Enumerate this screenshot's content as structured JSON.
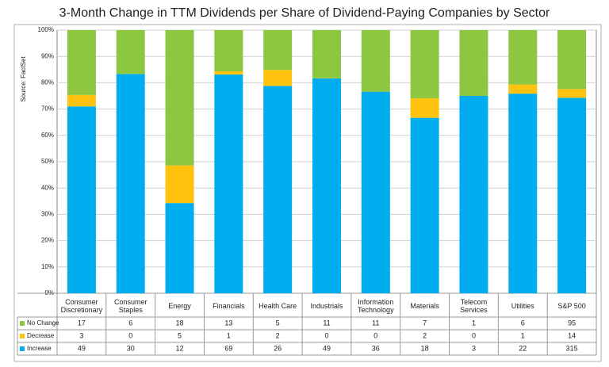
{
  "chart_data": {
    "type": "stacked-percent-bar",
    "title": "3-Month Change in TTM Dividends per Share of Dividend-Paying Companies by Sector",
    "source": "Source: FactSet",
    "categories": [
      "Consumer Discretionary",
      "Consumer Staples",
      "Energy",
      "Financials",
      "Health Care",
      "Industrials",
      "Information Technology",
      "Materials",
      "Telecom Services",
      "Utilities",
      "S&P 500"
    ],
    "series": [
      {
        "name": "No Change",
        "color": "#8dc63f",
        "values": [
          17,
          6,
          18,
          13,
          5,
          11,
          11,
          7,
          1,
          6,
          95
        ]
      },
      {
        "name": "Decrease",
        "color": "#ffc20e",
        "values": [
          3,
          0,
          5,
          1,
          2,
          0,
          0,
          2,
          0,
          1,
          14
        ]
      },
      {
        "name": "Increase",
        "color": "#00aeef",
        "values": [
          49,
          30,
          12,
          69,
          26,
          49,
          36,
          18,
          3,
          22,
          315
        ]
      }
    ],
    "ylim": [
      0,
      100
    ],
    "yticks": [
      {
        "value": 0,
        "label": "0%"
      },
      {
        "value": 10,
        "label": "10%"
      },
      {
        "value": 20,
        "label": "20%"
      },
      {
        "value": 30,
        "label": "30%"
      },
      {
        "value": 40,
        "label": "40%"
      },
      {
        "value": 50,
        "label": "50%"
      },
      {
        "value": 60,
        "label": "60%"
      },
      {
        "value": 70,
        "label": "70%"
      },
      {
        "value": 80,
        "label": "80%"
      },
      {
        "value": 90,
        "label": "90%"
      },
      {
        "value": 100,
        "label": "100%"
      }
    ],
    "grid": true
  }
}
